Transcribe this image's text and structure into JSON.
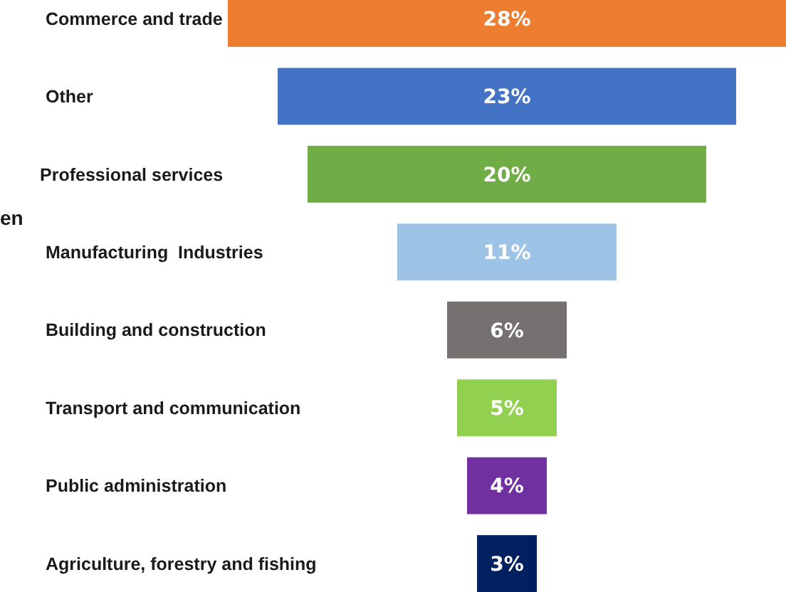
{
  "chart_data": {
    "type": "other",
    "categories": [
      "Commerce and trade",
      "Other",
      "Professional services",
      "Manufacturing  Industries",
      "Building and construction",
      "Transport and communication",
      "Public administration",
      "Agriculture, forestry and fishing"
    ],
    "values": [
      28,
      23,
      20,
      11,
      6,
      5,
      4,
      3
    ],
    "colors": [
      "#ed7d31",
      "#4472c4",
      "#70ad47",
      "#9dc3e6",
      "#767171",
      "#92d050",
      "#7030a0",
      "#002060"
    ],
    "value_labels": [
      "28%",
      "23%",
      "20%",
      "11%",
      "6%",
      "5%",
      "4%",
      "3%"
    ],
    "annotations": [
      "en"
    ]
  }
}
